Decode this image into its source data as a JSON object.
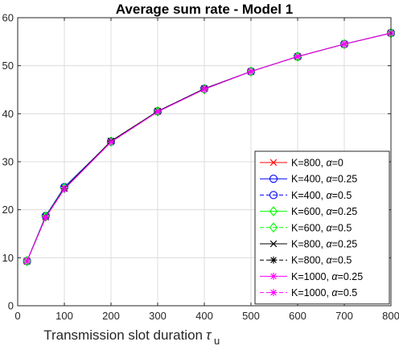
{
  "chart_data": {
    "type": "line",
    "title": "Average sum rate - Model 1",
    "xlabel": "Transmission slot duration",
    "xlabel_symbol": "τ",
    "xlabel_subscript": "u",
    "ylabel": "",
    "xlim": [
      0,
      800
    ],
    "ylim": [
      0,
      60
    ],
    "xticks": [
      0,
      100,
      200,
      300,
      400,
      500,
      600,
      700,
      800
    ],
    "yticks": [
      0,
      10,
      20,
      30,
      40,
      50,
      60
    ],
    "grid": true,
    "legend_position": "lower-right",
    "x": [
      20,
      60,
      100,
      200,
      300,
      400,
      500,
      600,
      700,
      800
    ],
    "series": [
      {
        "name": "K=800,",
        "alpha": "α=0",
        "color": "#ff0000",
        "marker": "x",
        "dash": "solid",
        "values": [
          9.3,
          18.5,
          24.5,
          34.2,
          40.5,
          45.2,
          48.8,
          51.9,
          54.5,
          56.8
        ]
      },
      {
        "name": "K=400,",
        "alpha": "α=0.25",
        "color": "#0000ff",
        "marker": "o",
        "dash": "solid",
        "values": [
          9.3,
          18.7,
          24.7,
          34.2,
          40.5,
          45.2,
          48.8,
          51.9,
          54.5,
          56.8
        ]
      },
      {
        "name": "K=400,",
        "alpha": "α=0.5",
        "color": "#0000ff",
        "marker": "o",
        "dash": "dashed",
        "values": [
          9.3,
          18.7,
          24.7,
          34.2,
          40.5,
          45.2,
          48.8,
          51.9,
          54.5,
          56.8
        ]
      },
      {
        "name": "K=600,",
        "alpha": "α=0.25",
        "color": "#00ff00",
        "marker": "diamond",
        "dash": "solid",
        "values": [
          9.3,
          18.6,
          24.5,
          34.2,
          40.5,
          45.1,
          48.8,
          51.9,
          54.5,
          56.8
        ]
      },
      {
        "name": "K=600,",
        "alpha": "α=0.5",
        "color": "#00ff00",
        "marker": "diamond",
        "dash": "dashed",
        "values": [
          9.3,
          18.6,
          24.5,
          34.2,
          40.5,
          45.1,
          48.8,
          51.9,
          54.5,
          56.8
        ]
      },
      {
        "name": "K=800,",
        "alpha": "α=0.25",
        "color": "#000000",
        "marker": "x",
        "dash": "solid",
        "values": [
          9.3,
          18.5,
          24.4,
          34.3,
          40.5,
          45.2,
          48.8,
          51.9,
          54.5,
          56.8
        ]
      },
      {
        "name": "K=800,",
        "alpha": "α=0.5",
        "color": "#000000",
        "marker": "star",
        "dash": "dashed",
        "values": [
          9.3,
          18.5,
          24.4,
          34.3,
          40.5,
          45.2,
          48.8,
          51.9,
          54.5,
          56.8
        ]
      },
      {
        "name": "K=1000,",
        "alpha": "α=0.25",
        "color": "#ff00ff",
        "marker": "star",
        "dash": "solid",
        "values": [
          9.3,
          18.4,
          24.3,
          34.1,
          40.4,
          45.1,
          48.8,
          51.9,
          54.5,
          56.8
        ]
      },
      {
        "name": "K=1000,",
        "alpha": "α=0.5",
        "color": "#ff00ff",
        "marker": "star",
        "dash": "dashed",
        "values": [
          9.3,
          18.4,
          24.3,
          34.1,
          40.4,
          45.1,
          48.8,
          51.9,
          54.5,
          56.8
        ]
      }
    ]
  }
}
